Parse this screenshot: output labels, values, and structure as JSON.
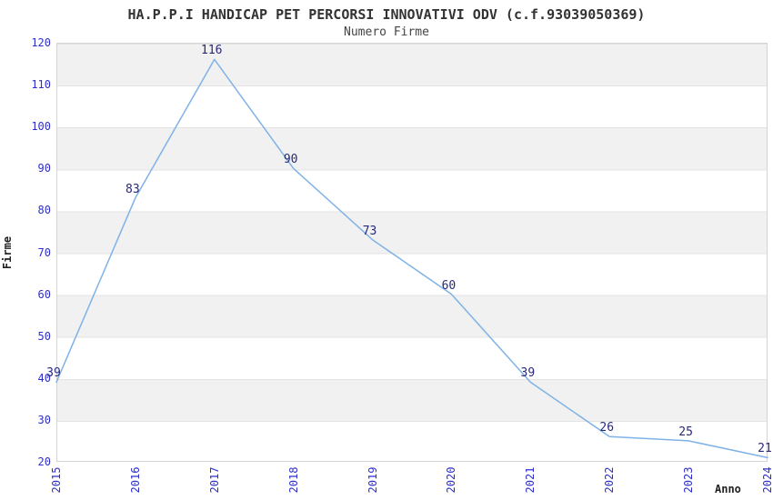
{
  "title": "HA.P.P.I HANDICAP PET PERCORSI INNOVATIVI ODV (c.f.93039050369)",
  "subtitle": "Numero Firme",
  "chart_data": {
    "type": "line",
    "x": [
      "2015",
      "2016",
      "2017",
      "2018",
      "2019",
      "2020",
      "2021",
      "2022",
      "2023",
      "2024"
    ],
    "values": [
      39,
      83,
      116,
      90,
      73,
      60,
      39,
      26,
      25,
      21
    ],
    "title": "HA.P.P.I HANDICAP PET PERCORSI INNOVATIVI ODV (c.f.93039050369)",
    "subtitle": "Numero Firme",
    "xlabel": "Anno",
    "ylabel": "Firme",
    "ylim": [
      20,
      120
    ],
    "ytick_step": 10,
    "yticks": [
      20,
      30,
      40,
      50,
      60,
      70,
      80,
      90,
      100,
      110,
      120
    ],
    "grid": "horizontal-alternating-bands",
    "legend_position": "none",
    "point_labels_visible": true,
    "colors": {
      "line": "#7fb2e6",
      "tick_label": "#2e2ecc",
      "point_label": "#28287d",
      "band_gray": "#f1f1f1",
      "band_white": "#ffffff",
      "grid_line": "#e3e3e3",
      "plot_border": "#d4d4d4",
      "title_text": "#333333",
      "axis_title_text": "#222222"
    }
  }
}
